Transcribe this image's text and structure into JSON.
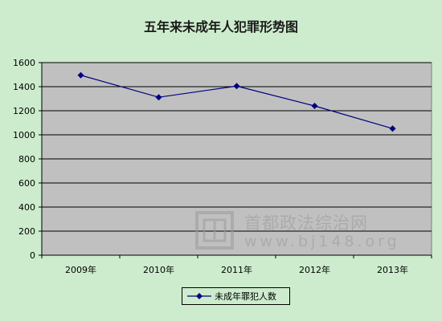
{
  "chart_data": {
    "type": "line",
    "title": "五年来未成年人犯罪形势图",
    "categories": [
      "2009年",
      "2010年",
      "2011年",
      "2012年",
      "2013年"
    ],
    "series": [
      {
        "name": "未成年罪犯人数",
        "values": [
          1495,
          1312,
          1405,
          1240,
          1052
        ],
        "color": "#000080"
      }
    ],
    "yticks": [
      "0",
      "200",
      "400",
      "600",
      "800",
      "1000",
      "1200",
      "1400",
      "1600"
    ],
    "ylim": [
      0,
      1600
    ],
    "grid": true,
    "legend_position": "bottom",
    "plot_background": "#c0c0c0",
    "chart_background": "#cdeccd"
  },
  "watermark": {
    "name": "首都政法综治网",
    "url": "www.bj148.org"
  }
}
